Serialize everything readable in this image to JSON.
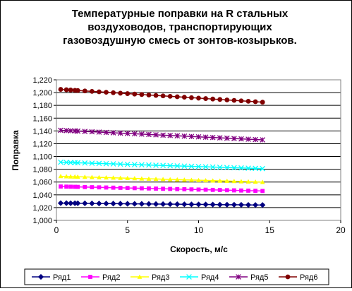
{
  "chart_data": {
    "type": "line",
    "title": "Температурные поправки на R стальных воздуховодов, транспортирующих газовоздушную  смесь от зонтов-козырьков.",
    "title_lines": [
      "Температурные поправки на R стальных",
      "воздуховодов, транспортирующих",
      "газовоздушную  смесь от зонтов-козырьков."
    ],
    "xlabel": "Скорость, м/с",
    "ylabel": "Поправка",
    "xlim": [
      0,
      20
    ],
    "ylim": [
      1.0,
      1.22
    ],
    "x_ticks": [
      0,
      5,
      10,
      15,
      20
    ],
    "y_ticks": [
      1.0,
      1.02,
      1.04,
      1.06,
      1.08,
      1.1,
      1.12,
      1.14,
      1.16,
      1.18,
      1.2,
      1.22
    ],
    "x_tick_labels": [
      "0",
      "5",
      "10",
      "15",
      "20"
    ],
    "y_tick_labels": [
      "1,000",
      "1,020",
      "1,040",
      "1,060",
      "1,080",
      "1,100",
      "1,120",
      "1,140",
      "1,160",
      "1,180",
      "1,200",
      "1,220"
    ],
    "grid": "horizontal",
    "legend_position": "bottom",
    "x": [
      0.3,
      0.7,
      1.0,
      1.3,
      1.5,
      2.0,
      2.5,
      3.0,
      3.5,
      4.0,
      4.5,
      5.0,
      5.5,
      6.0,
      6.5,
      7.0,
      7.5,
      8.0,
      8.5,
      9.0,
      9.5,
      10.0,
      10.5,
      11.0,
      11.5,
      12.0,
      12.5,
      13.0,
      13.5,
      14.0,
      14.5
    ],
    "series": [
      {
        "name": "Ряд1",
        "marker": "diamond",
        "color": "#000080",
        "start": 1.027,
        "end": 1.024
      },
      {
        "name": "Ряд2",
        "marker": "square",
        "color": "#ff00ff",
        "start": 1.053,
        "end": 1.046
      },
      {
        "name": "Ряд3",
        "marker": "triangle",
        "color": "#ffff00",
        "start": 1.069,
        "end": 1.06
      },
      {
        "name": "Ряд4",
        "marker": "x",
        "color": "#00ffff",
        "start": 1.091,
        "end": 1.081
      },
      {
        "name": "Ряд5",
        "marker": "star",
        "color": "#800080",
        "start": 1.141,
        "end": 1.126
      },
      {
        "name": "Ряд6",
        "marker": "circle",
        "color": "#800000",
        "start": 1.205,
        "end": 1.185
      }
    ]
  }
}
